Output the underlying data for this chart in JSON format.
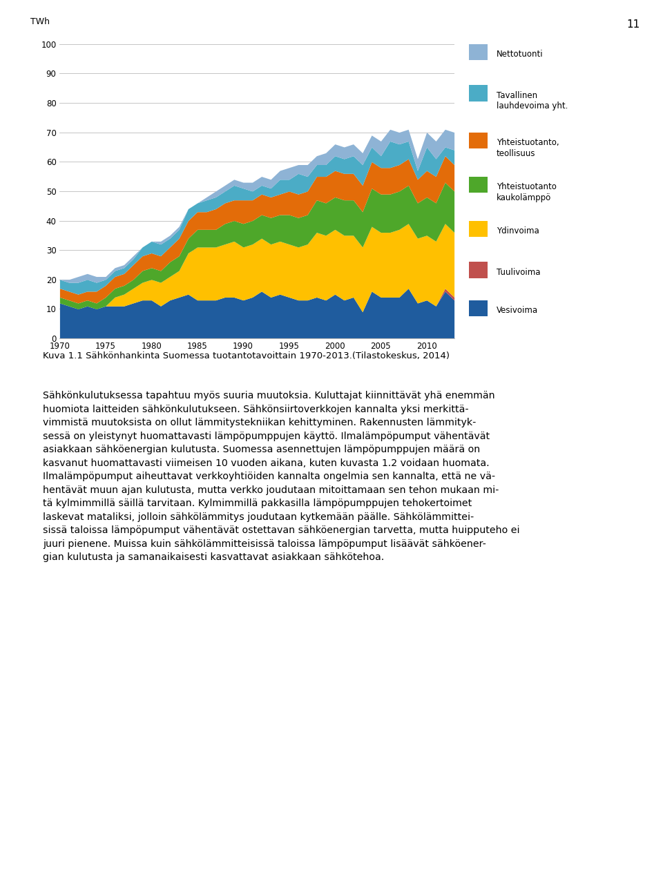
{
  "ylabel": "TWh",
  "xlim": [
    1970,
    2013
  ],
  "ylim": [
    0,
    100
  ],
  "yticks": [
    0,
    10,
    20,
    30,
    40,
    50,
    60,
    70,
    80,
    90,
    100
  ],
  "xticks": [
    1970,
    1975,
    1980,
    1985,
    1990,
    1995,
    2000,
    2005,
    2010
  ],
  "series_colors": [
    "#1F5C9E",
    "#C0504D",
    "#FFC000",
    "#4EA72A",
    "#E36C09",
    "#4BACC6",
    "#8EB3D5"
  ],
  "years": [
    1970,
    1971,
    1972,
    1973,
    1974,
    1975,
    1976,
    1977,
    1978,
    1979,
    1980,
    1981,
    1982,
    1983,
    1984,
    1985,
    1986,
    1987,
    1988,
    1989,
    1990,
    1991,
    1992,
    1993,
    1994,
    1995,
    1996,
    1997,
    1998,
    1999,
    2000,
    2001,
    2002,
    2003,
    2004,
    2005,
    2006,
    2007,
    2008,
    2009,
    2010,
    2011,
    2012,
    2013
  ],
  "vesivoima": [
    12,
    11,
    10,
    11,
    10,
    11,
    11,
    11,
    12,
    13,
    13,
    11,
    13,
    14,
    15,
    13,
    13,
    13,
    14,
    14,
    13,
    14,
    16,
    14,
    15,
    14,
    13,
    13,
    14,
    13,
    15,
    13,
    14,
    9,
    16,
    14,
    14,
    14,
    17,
    12,
    13,
    11,
    16,
    13
  ],
  "tuulivoima": [
    0,
    0,
    0,
    0,
    0,
    0,
    0,
    0,
    0,
    0,
    0,
    0,
    0,
    0,
    0,
    0,
    0,
    0,
    0,
    0,
    0,
    0,
    0,
    0,
    0,
    0,
    0,
    0,
    0,
    0,
    0,
    0,
    0,
    0,
    0,
    0,
    0,
    0,
    0,
    0,
    0,
    0,
    1,
    1
  ],
  "ydinvoima": [
    0,
    0,
    0,
    0,
    0,
    0,
    3,
    4,
    5,
    6,
    7,
    8,
    8,
    9,
    14,
    18,
    18,
    18,
    18,
    19,
    18,
    18,
    18,
    18,
    18,
    18,
    18,
    19,
    22,
    22,
    22,
    22,
    21,
    22,
    22,
    22,
    22,
    23,
    22,
    22,
    22,
    22,
    22,
    22
  ],
  "yhteistuotanto_kauko": [
    2,
    2,
    2,
    2,
    2,
    3,
    3,
    3,
    3,
    4,
    4,
    4,
    5,
    5,
    5,
    6,
    6,
    6,
    7,
    7,
    8,
    8,
    8,
    9,
    9,
    10,
    10,
    10,
    11,
    11,
    11,
    12,
    12,
    12,
    13,
    13,
    13,
    13,
    13,
    12,
    13,
    13,
    14,
    14
  ],
  "yhteistuotanto_teo": [
    3,
    3,
    3,
    3,
    4,
    4,
    4,
    4,
    5,
    5,
    5,
    5,
    5,
    6,
    6,
    6,
    6,
    7,
    7,
    7,
    8,
    7,
    7,
    7,
    7,
    8,
    8,
    8,
    8,
    9,
    9,
    9,
    9,
    9,
    9,
    9,
    9,
    9,
    9,
    8,
    9,
    9,
    9,
    9
  ],
  "lauhde": [
    3,
    3,
    4,
    4,
    3,
    2,
    2,
    2,
    2,
    3,
    4,
    4,
    3,
    3,
    4,
    3,
    4,
    4,
    4,
    5,
    4,
    3,
    3,
    3,
    5,
    4,
    7,
    5,
    4,
    4,
    5,
    5,
    6,
    7,
    5,
    4,
    9,
    7,
    6,
    3,
    8,
    6,
    3,
    5
  ],
  "nettotuonti": [
    0,
    1,
    2,
    2,
    2,
    1,
    1,
    1,
    1,
    0,
    0,
    1,
    1,
    1,
    0,
    0,
    1,
    2,
    2,
    2,
    2,
    3,
    3,
    3,
    3,
    4,
    3,
    4,
    3,
    4,
    4,
    4,
    4,
    4,
    4,
    5,
    4,
    4,
    4,
    4,
    5,
    6,
    6,
    6
  ],
  "page_number": "11",
  "caption": "Kuva 1.1 Sähkönhankinta Suomessa tuotantotavoittain 1970-2013.(Tilastokeskus, 2014)",
  "legend_items": [
    [
      "#8EB3D5",
      "Nettotuonti"
    ],
    [
      "#4BACC6",
      "Tavallinen\nlauhdevoima yht."
    ],
    [
      "#E36C09",
      "Yhteistuotanto,\nteollisuus"
    ],
    [
      "#4EA72A",
      "Yhteistuotanto\nkaukolämppö"
    ],
    [
      "#FFC000",
      "Ydinvoima"
    ],
    [
      "#C0504D",
      "Tuulivoima"
    ],
    [
      "#1F5C9E",
      "Vesivoima"
    ]
  ],
  "body_lines": [
    "Sähkönkulutuksessa tapahtuu myös suuria muutoksia. Kuluttajat kiinnittävät yhä enemmän",
    "huomiota laitteiden sähkönkulutukseen. Sähkönsiirtoverkkojen kannalta yksi merkittä-",
    "vimmistä muutoksista on ollut lämmitystekniikan kehittyminen. Rakennusten lämmityk-",
    "sessä on yleistynyt huomattavasti lämpöpumppujen käyttö. Ilmalämpöpumput vähentävät",
    "asiakkaan sähköenergian kulutusta. Suomessa asennettujen lämpöpumppujen määrä on",
    "kasvanut huomattavasti viimeisen 10 vuoden aikana, kuten kuvasta 1.2 voidaan huomata.",
    "Ilmalämpöpumput aiheuttavat verkkoyhtiöiden kannalta ongelmia sen kannalta, että ne vä-",
    "hentävät muun ajan kulutusta, mutta verkko joudutaan mitoittamaan sen tehon mukaan mi-",
    "tä kylmimmillä säillä tarvitaan. Kylmimmillä pakkasilla lämpöpumppujen tehokertoimet",
    "laskevat mataliksi, jolloin sähkölämmitys joudutaan kytkemään päälle. Sähkölämmittei-",
    "sissä taloissa lämpöpumput vähentävät ostettavan sähköenergian tarvetta, mutta huipputeho ei",
    "juuri pienene. Muissa kuin sähkölämmitteisissä taloissa lämpöpumput lisäävät sähköener-",
    "gian kulutusta ja samanaikaisesti kasvattavat asiakkaan sähkötehoa."
  ]
}
